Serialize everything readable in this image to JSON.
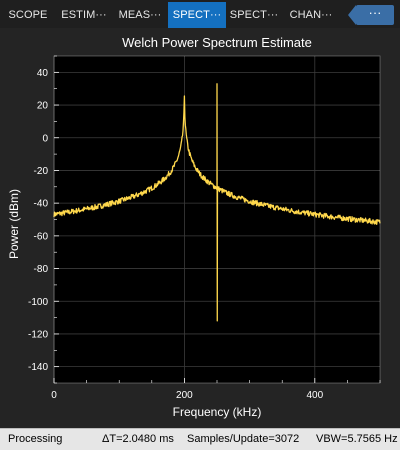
{
  "tabs": [
    {
      "label": "SCOPE",
      "active": false
    },
    {
      "label": "ESTIM···",
      "active": false
    },
    {
      "label": "MEAS···",
      "active": false
    },
    {
      "label": "SPECT···",
      "active": true
    },
    {
      "label": "SPECT···",
      "active": false
    },
    {
      "label": "CHAN···",
      "active": false
    }
  ],
  "more_label": "···",
  "chart_data": {
    "type": "line",
    "title": "Welch Power Spectrum Estimate",
    "xlabel": "Frequency (kHz)",
    "ylabel": "Power (dBm)",
    "xlim": [
      0,
      500
    ],
    "ylim": [
      -150,
      50
    ],
    "xticks": [
      0,
      200,
      400
    ],
    "yticks": [
      40,
      20,
      0,
      -20,
      -40,
      -60,
      -80,
      -100,
      -120,
      -140
    ],
    "grid": true,
    "line_color": "#ffd84c",
    "series": [
      {
        "noise_floor": -120,
        "peaks": [
          {
            "x": 200,
            "y": 26
          },
          {
            "x": 250,
            "y": 33
          }
        ]
      }
    ]
  },
  "status": {
    "state": "Processing",
    "delta_t": "ΔT=2.0480 ms",
    "samples": "Samples/Update=3072",
    "vbw": "VBW=5.7565 Hz"
  }
}
